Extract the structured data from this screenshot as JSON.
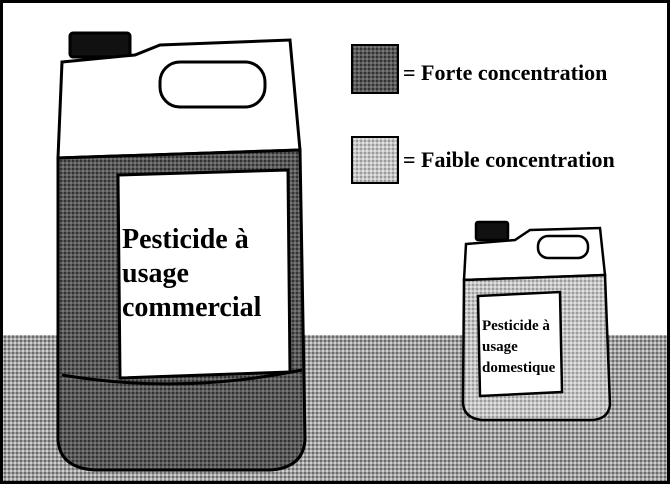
{
  "legend": [
    {
      "label": "= Forte concentration"
    },
    {
      "label": "= Faible concentration"
    }
  ],
  "containers": [
    {
      "label_lines": [
        "Pesticide à",
        "usage",
        "commercial"
      ]
    },
    {
      "label_lines": [
        "Pesticide à",
        "usage",
        "domestique"
      ]
    }
  ]
}
